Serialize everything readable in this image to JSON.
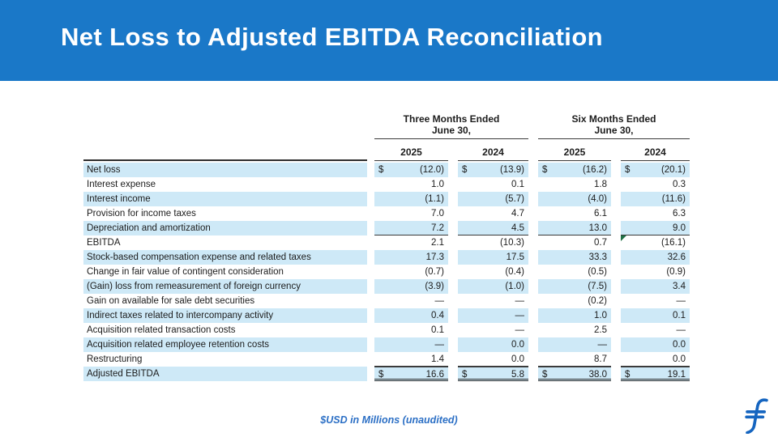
{
  "slide": {
    "title": "Net Loss to Adjusted EBITDA Reconciliation",
    "footnote": "$USD in Millions (unaudited)"
  },
  "colors": {
    "banner_blue": "#1a78c8",
    "row_highlight_blue": "#cee9f7",
    "accent_blue": "#2b6fc5",
    "logo_blue": "#1565c0",
    "flag_green": "#1e7145"
  },
  "icons": {
    "logo": "flywire-f-logo",
    "flag": "excel-flag-icon"
  },
  "table": {
    "currency_symbol": "$",
    "group_headers": [
      {
        "line1": "Three Months Ended",
        "line2": "June 30,"
      },
      {
        "line1": "Six Months Ended",
        "line2": "June 30,"
      }
    ],
    "year_headers": [
      "2025",
      "2024",
      "2025",
      "2024"
    ],
    "rows": [
      {
        "label": "Net loss",
        "dollar": true,
        "shaded": true,
        "values": [
          "(12.0)",
          "(13.9)",
          "(16.2)",
          "(20.1)"
        ]
      },
      {
        "label": "Interest expense",
        "dollar": false,
        "shaded": false,
        "values": [
          "1.0",
          "0.1",
          "1.8",
          "0.3"
        ]
      },
      {
        "label": "Interest income",
        "dollar": false,
        "shaded": true,
        "values": [
          "(1.1)",
          "(5.7)",
          "(4.0)",
          "(11.6)"
        ]
      },
      {
        "label": "Provision for income taxes",
        "dollar": false,
        "shaded": false,
        "values": [
          "7.0",
          "4.7",
          "6.1",
          "6.3"
        ]
      },
      {
        "label": "Depreciation and amortization",
        "dollar": false,
        "shaded": true,
        "rule": "below",
        "values": [
          "7.2",
          "4.5",
          "13.0",
          "9.0"
        ]
      },
      {
        "label": "EBITDA",
        "dollar": false,
        "shaded": false,
        "flag_col": 3,
        "values": [
          "2.1",
          "(10.3)",
          "0.7",
          "(16.1)"
        ]
      },
      {
        "label": "Stock-based compensation expense and related taxes",
        "dollar": false,
        "shaded": true,
        "values": [
          "17.3",
          "17.5",
          "33.3",
          "32.6"
        ]
      },
      {
        "label": "Change in fair value of contingent consideration",
        "dollar": false,
        "shaded": false,
        "values": [
          "(0.7)",
          "(0.4)",
          "(0.5)",
          "(0.9)"
        ]
      },
      {
        "label": "(Gain) loss from remeasurement of foreign currency",
        "dollar": false,
        "shaded": true,
        "values": [
          "(3.9)",
          "(1.0)",
          "(7.5)",
          "3.4"
        ]
      },
      {
        "label": "Gain on available for sale debt securities",
        "dollar": false,
        "shaded": false,
        "values": [
          "—",
          "—",
          "(0.2)",
          "—"
        ]
      },
      {
        "label": "Indirect taxes related to intercompany activity",
        "dollar": false,
        "shaded": true,
        "values": [
          "0.4",
          "—",
          "1.0",
          "0.1"
        ]
      },
      {
        "label": "Acquisition related transaction costs",
        "dollar": false,
        "shaded": false,
        "values": [
          "0.1",
          "—",
          "2.5",
          "—"
        ]
      },
      {
        "label": "Acquisition related employee retention costs",
        "dollar": false,
        "shaded": true,
        "values": [
          "—",
          "0.0",
          "—",
          "0.0"
        ]
      },
      {
        "label": "Restructuring",
        "dollar": false,
        "shaded": false,
        "rule": "below",
        "values": [
          "1.4",
          "0.0",
          "8.7",
          "0.0"
        ]
      },
      {
        "label": "Adjusted EBITDA",
        "dollar": true,
        "shaded": true,
        "rule": "total",
        "values": [
          "16.6",
          "5.8",
          "38.0",
          "19.1"
        ]
      }
    ]
  }
}
